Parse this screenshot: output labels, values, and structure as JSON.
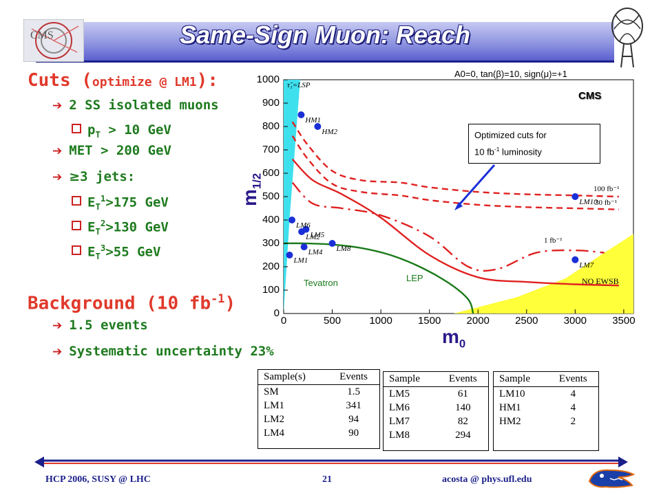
{
  "title": "Same-Sign Muon: Reach",
  "left": {
    "cuts_heading_pre": "Cuts (",
    "cuts_heading_small": "optimize @ LM1",
    "cuts_heading_post": "):",
    "cut1": "2 SS isolated muons",
    "cut1a_pre": "p",
    "cut1a_sub": "T",
    "cut1a_post": " > 10 GeV",
    "cut2": "MET > 200 GeV",
    "cut3_sym": "≥",
    "cut3": "3 jets:",
    "et1_pre": "E",
    "et1_sub": "T",
    "et1_sup": "1",
    "et1_post": ">175 GeV",
    "et2_pre": "E",
    "et2_sub": "T",
    "et2_sup": "2",
    "et2_post": ">130 GeV",
    "et3_pre": "E",
    "et3_sub": "T",
    "et3_sup": "3",
    "et3_post": ">55 GeV",
    "bg_heading_pre": "Background (10 fb",
    "bg_heading_sup": "-1",
    "bg_heading_post": ")",
    "bg1": "1.5 events",
    "bg2": "Systematic uncertainty 23%"
  },
  "plot": {
    "subtitle": "A0=0, tan(β)=10, sign(μ)=+1",
    "cms_tag": "CMS",
    "callout_line1": "Optimized cuts for",
    "callout_line2_pre": "10 fb",
    "callout_line2_sup": "-1",
    "callout_line2_post": " luminosity",
    "ylabel_main": "m",
    "ylabel_sub": "1/2",
    "xlabel_main": "m",
    "xlabel_sub": "0",
    "yticks": [
      "1000",
      "900",
      "800",
      "700",
      "600",
      "500",
      "400",
      "300",
      "200",
      "100",
      "0"
    ],
    "xticks": [
      "0",
      "500",
      "1000",
      "1500",
      "2000",
      "2500",
      "3000",
      "3500"
    ],
    "lsp_label": "τ̃₁=LSP",
    "tevatron": "Tevatron",
    "lep": "LEP",
    "no_ewsb": "NO EWSB",
    "lumi_labels": [
      "100 fb⁻¹",
      "30 fb⁻¹",
      "1 fb⁻¹"
    ]
  },
  "chart_data": {
    "type": "scatter",
    "subtitle": "A0=0, tan(β)=10, sign(μ)=+1",
    "xlabel": "m0",
    "ylabel": "m1/2",
    "xlim": [
      0,
      3600
    ],
    "ylim": [
      0,
      1000
    ],
    "points": [
      {
        "name": "HM1",
        "x": 180,
        "y": 850
      },
      {
        "name": "HM2",
        "x": 350,
        "y": 800
      },
      {
        "name": "LM6",
        "x": 85,
        "y": 400
      },
      {
        "name": "LM5",
        "x": 230,
        "y": 360
      },
      {
        "name": "LM2",
        "x": 185,
        "y": 350
      },
      {
        "name": "LM8",
        "x": 500,
        "y": 300
      },
      {
        "name": "LM4",
        "x": 210,
        "y": 285
      },
      {
        "name": "LM1",
        "x": 60,
        "y": 250
      },
      {
        "name": "LM10",
        "x": 3000,
        "y": 500
      },
      {
        "name": "LM7",
        "x": 3000,
        "y": 230
      }
    ],
    "series": [
      {
        "name": "100 fb⁻¹",
        "style": "dashed",
        "color": "#e02020",
        "x": [
          90,
          250,
          500,
          800,
          1200,
          1500,
          2000,
          2500,
          3000,
          3450
        ],
        "y": [
          820,
          720,
          610,
          570,
          560,
          540,
          520,
          510,
          505,
          500
        ]
      },
      {
        "name": "30 fb⁻¹",
        "style": "dashed",
        "color": "#e02020",
        "x": [
          90,
          250,
          500,
          800,
          1200,
          1500,
          2000,
          2500,
          3000,
          3450
        ],
        "y": [
          760,
          660,
          555,
          520,
          505,
          485,
          465,
          455,
          450,
          445
        ]
      },
      {
        "name": "1 fb⁻¹",
        "style": "dashdot",
        "color": "#e02020",
        "x": [
          90,
          300,
          600,
          1000,
          1500,
          1900,
          2200,
          2600,
          3000,
          3300
        ],
        "y": [
          560,
          470,
          450,
          420,
          330,
          200,
          190,
          260,
          270,
          260
        ]
      },
      {
        "name": "",
        "style": "solid",
        "color": "#e02020",
        "x": [
          90,
          300,
          600,
          1000,
          1500,
          2000,
          2500,
          3000,
          3450
        ],
        "y": [
          660,
          570,
          510,
          410,
          250,
          155,
          135,
          125,
          120
        ]
      },
      {
        "name": "LEP",
        "style": "solid",
        "color": "#1a7a1a",
        "x": [
          0,
          200,
          500,
          800,
          1100,
          1400,
          1700,
          1900,
          1950
        ],
        "y": [
          300,
          300,
          295,
          280,
          250,
          200,
          130,
          60,
          0
        ]
      }
    ],
    "tables": [
      {
        "headers": [
          "Sample(s)",
          "Events"
        ],
        "rows": [
          [
            "SM",
            "1.5"
          ],
          [
            "LM1",
            "341"
          ],
          [
            "LM2",
            "94"
          ],
          [
            "LM4",
            "90"
          ]
        ]
      },
      {
        "headers": [
          "Sample",
          "Events"
        ],
        "rows": [
          [
            "LM5",
            "61"
          ],
          [
            "LM6",
            "140"
          ],
          [
            "LM7",
            "82"
          ],
          [
            "LM8",
            "294"
          ]
        ]
      },
      {
        "headers": [
          "Sample",
          "Events"
        ],
        "rows": [
          [
            "LM10",
            "4"
          ],
          [
            "HM1",
            "4"
          ],
          [
            "HM2",
            "2"
          ]
        ]
      }
    ]
  },
  "tables": {
    "t1": {
      "h1": "Sample(s)",
      "h2": "Events",
      "rows": [
        [
          "SM",
          "1.5"
        ],
        [
          "LM1",
          "341"
        ],
        [
          "LM2",
          "94"
        ],
        [
          "LM4",
          "90"
        ]
      ]
    },
    "t2": {
      "h1": "Sample",
      "h2": "Events",
      "rows": [
        [
          "LM5",
          "61"
        ],
        [
          "LM6",
          "140"
        ],
        [
          "LM7",
          "82"
        ],
        [
          "LM8",
          "294"
        ]
      ]
    },
    "t3": {
      "h1": "Sample",
      "h2": "Events",
      "rows": [
        [
          "LM10",
          "4"
        ],
        [
          "HM1",
          "4"
        ],
        [
          "HM2",
          "2"
        ]
      ]
    }
  },
  "footer": {
    "left": "HCP 2006,    SUSY @ LHC",
    "center": "21",
    "right": "acosta @ phys.ufl.edu"
  },
  "colors": {
    "title_text": "#ffffff",
    "heading_red": "#e0392b",
    "bullet_green": "#1e7a1e",
    "curve_red": "#e02020",
    "lep_green": "#1a7a1a",
    "lsp_cyan": "#3fe0ee",
    "no_ewsb_yellow": "#ffff3a",
    "point_blue": "#1a2fd6",
    "footer_navy": "#1b1f8a"
  }
}
